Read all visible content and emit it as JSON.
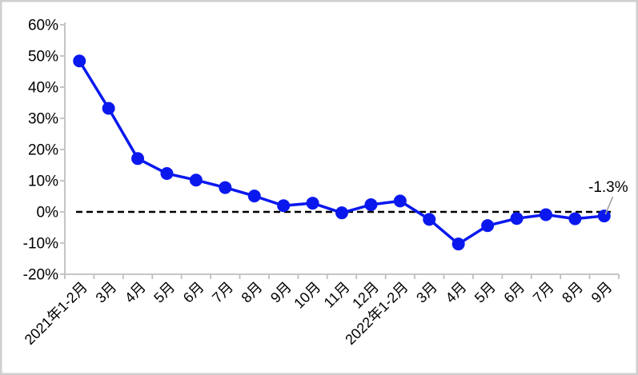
{
  "chart_data": {
    "type": "line",
    "title": "",
    "categories": [
      "2021年1-2月",
      "3月",
      "4月",
      "5月",
      "6月",
      "7月",
      "8月",
      "9月",
      "10月",
      "11月",
      "12月",
      "2022年1-2月",
      "3月",
      "4月",
      "5月",
      "6月",
      "7月",
      "8月",
      "9月"
    ],
    "values": [
      48.4,
      33.2,
      17.1,
      12.3,
      10.2,
      7.8,
      5.1,
      2.0,
      2.8,
      -0.3,
      2.3,
      3.5,
      -2.4,
      -10.3,
      -4.4,
      -2.1,
      -0.9,
      -2.2,
      -1.3
    ],
    "xlabel": "",
    "ylabel": "",
    "ylim": [
      -20,
      60
    ],
    "y_tick_step": 10,
    "y_tick_labels": [
      "60%",
      "50%",
      "40%",
      "30%",
      "20%",
      "10%",
      "0%",
      "-10%",
      "-20%"
    ],
    "grid": "off",
    "legend": "none",
    "zero_line": {
      "value": 0,
      "style": "dashed",
      "color": "#000000"
    },
    "annotation": {
      "text": "-1.3%",
      "index": 18
    },
    "colors": {
      "line": "#0a18ee",
      "marker": "#0a18ee",
      "axis": "#bfbfbf",
      "leader": "#a6a6a6",
      "label_text": "#000000",
      "frame_border": "#cfcfcf"
    }
  }
}
